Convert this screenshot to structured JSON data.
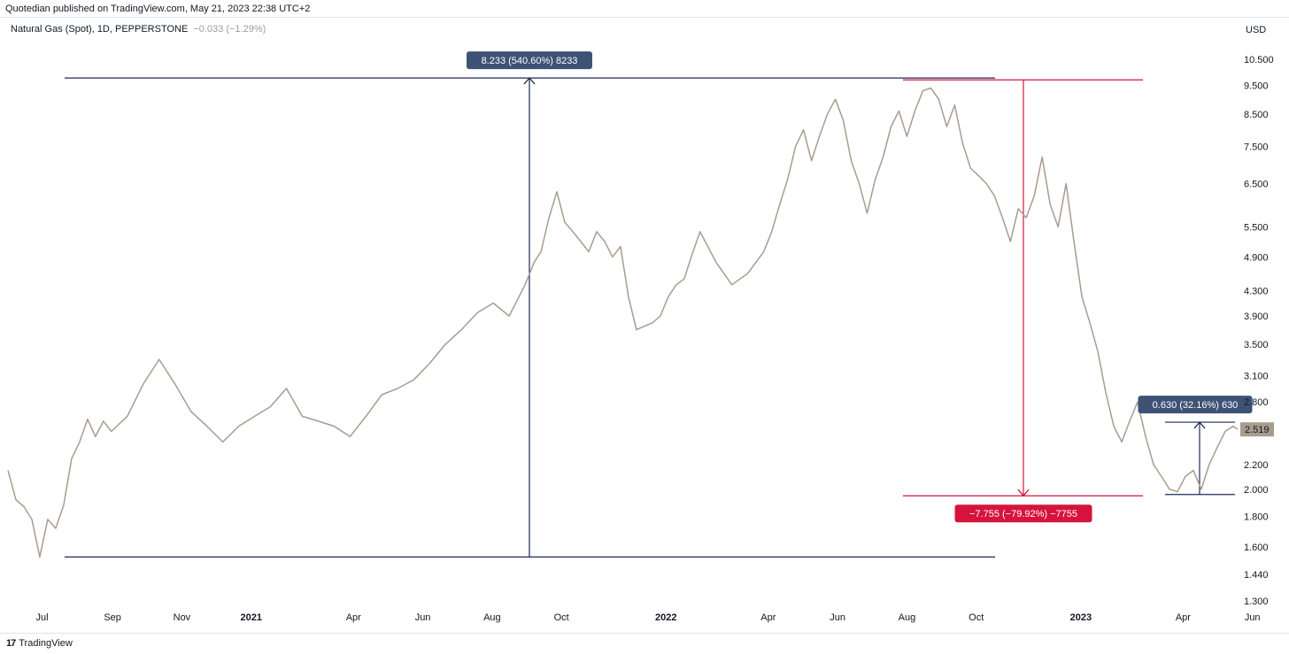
{
  "header": {
    "published": "Quotedian published on TradingView.com, May 21, 2023 22:38 UTC+2"
  },
  "legend": {
    "symbol": "Natural Gas (Spot), 1D, PEPPERSTONE",
    "change": "−0.033 (−1.29%)"
  },
  "currency_label": "USD",
  "footer": {
    "logo_glyph": "17",
    "brand": "TradingView"
  },
  "colors": {
    "price_line": "#a89c8e",
    "measure_blue": "#1e2a5a",
    "measure_red": "#d4143c",
    "label_blue_bg": "#3d5275",
    "last_price_bg": "#a89c8e"
  },
  "chart_data": {
    "type": "line",
    "scale": "log",
    "ylim": [
      1.25,
      11.2
    ],
    "y_ticks": [
      "10.500",
      "9.500",
      "8.500",
      "7.500",
      "6.500",
      "5.500",
      "4.900",
      "4.300",
      "3.900",
      "3.500",
      "3.100",
      "2.800",
      "2.519",
      "2.200",
      "2.000",
      "1.800",
      "1.600",
      "1.440",
      "1.300"
    ],
    "x_ticks": [
      "Jul",
      "Sep",
      "Nov",
      "2021",
      "Apr",
      "Jun",
      "Aug",
      "Oct",
      "2022",
      "Apr",
      "Jun",
      "Aug",
      "Oct",
      "2023",
      "Apr",
      "Jun"
    ],
    "last_price": "2.519",
    "series": [
      {
        "x": [
          "2020-06-01",
          "2020-06-08",
          "2020-06-15",
          "2020-06-22",
          "2020-06-29",
          "2020-07-06",
          "2020-07-13",
          "2020-07-20",
          "2020-07-27",
          "2020-08-03",
          "2020-08-10",
          "2020-08-17",
          "2020-08-24",
          "2020-08-31",
          "2020-09-14",
          "2020-09-28",
          "2020-10-12",
          "2020-10-26",
          "2020-11-09",
          "2020-11-23",
          "2020-12-07",
          "2020-12-21",
          "2021-01-04",
          "2021-01-18",
          "2021-02-01",
          "2021-02-15",
          "2021-03-01",
          "2021-03-15",
          "2021-03-29",
          "2021-04-12",
          "2021-04-26",
          "2021-05-10",
          "2021-05-24",
          "2021-06-07",
          "2021-06-21",
          "2021-07-05",
          "2021-07-19",
          "2021-08-02",
          "2021-08-16",
          "2021-08-30",
          "2021-09-07",
          "2021-09-13",
          "2021-09-20",
          "2021-09-27",
          "2021-10-04",
          "2021-10-11",
          "2021-10-18",
          "2021-10-25",
          "2021-11-01",
          "2021-11-08",
          "2021-11-15",
          "2021-11-22",
          "2021-11-29",
          "2021-12-06",
          "2021-12-13",
          "2021-12-20",
          "2021-12-27",
          "2022-01-03",
          "2022-01-10",
          "2022-01-17",
          "2022-01-24",
          "2022-01-31",
          "2022-02-14",
          "2022-02-28",
          "2022-03-14",
          "2022-03-28",
          "2022-04-04",
          "2022-04-11",
          "2022-04-18",
          "2022-04-25",
          "2022-05-02",
          "2022-05-09",
          "2022-05-16",
          "2022-05-23",
          "2022-05-30",
          "2022-06-06",
          "2022-06-13",
          "2022-06-20",
          "2022-06-27",
          "2022-07-04",
          "2022-07-11",
          "2022-07-18",
          "2022-07-25",
          "2022-08-01",
          "2022-08-08",
          "2022-08-15",
          "2022-08-22",
          "2022-08-29",
          "2022-09-05",
          "2022-09-12",
          "2022-09-19",
          "2022-09-26",
          "2022-10-03",
          "2022-10-10",
          "2022-10-17",
          "2022-10-24",
          "2022-10-31",
          "2022-11-07",
          "2022-11-14",
          "2022-11-21",
          "2022-11-28",
          "2022-12-05",
          "2022-12-12",
          "2022-12-19",
          "2022-12-26",
          "2023-01-02",
          "2023-01-09",
          "2023-01-16",
          "2023-01-23",
          "2023-01-30",
          "2023-02-06",
          "2023-02-13",
          "2023-02-20",
          "2023-02-27",
          "2023-03-06",
          "2023-03-13",
          "2023-03-20",
          "2023-03-27",
          "2023-04-03",
          "2023-04-10",
          "2023-04-17",
          "2023-04-24",
          "2023-05-01",
          "2023-05-08",
          "2023-05-15",
          "2023-05-19"
        ],
        "values": [
          2.15,
          1.92,
          1.87,
          1.78,
          1.54,
          1.78,
          1.72,
          1.88,
          2.25,
          2.4,
          2.62,
          2.45,
          2.6,
          2.5,
          2.65,
          3.0,
          3.3,
          3.0,
          2.7,
          2.55,
          2.4,
          2.55,
          2.65,
          2.75,
          2.95,
          2.65,
          2.6,
          2.55,
          2.45,
          2.65,
          2.88,
          2.95,
          3.05,
          3.25,
          3.5,
          3.7,
          3.95,
          4.1,
          3.9,
          4.4,
          4.8,
          5.0,
          5.7,
          6.3,
          5.6,
          5.4,
          5.2,
          5.0,
          5.4,
          5.2,
          4.9,
          5.1,
          4.2,
          3.7,
          3.75,
          3.8,
          3.9,
          4.2,
          4.4,
          4.5,
          4.95,
          5.4,
          4.8,
          4.4,
          4.6,
          5.0,
          5.4,
          6.0,
          6.6,
          7.5,
          8.0,
          7.1,
          7.8,
          8.5,
          9.0,
          8.3,
          7.1,
          6.5,
          5.8,
          6.6,
          7.2,
          8.1,
          8.6,
          7.8,
          8.6,
          9.3,
          9.4,
          9.0,
          8.1,
          8.8,
          7.6,
          6.9,
          6.7,
          6.5,
          6.2,
          5.7,
          5.2,
          5.9,
          5.7,
          6.2,
          7.2,
          6.0,
          5.5,
          6.5,
          5.2,
          4.2,
          3.8,
          3.4,
          2.9,
          2.55,
          2.4,
          2.6,
          2.8,
          2.45,
          2.2,
          2.1,
          2.0,
          1.98,
          2.1,
          2.15,
          2.0,
          2.2,
          2.35,
          2.5,
          2.55,
          2.52
        ]
      }
    ],
    "measurements": [
      {
        "label": "8.233 (540.60%) 8233",
        "from": 1.54,
        "to": 9.77,
        "direction": "up",
        "color": "blue"
      },
      {
        "label": "−7.755 (−79.92%) −7755",
        "from": 9.7,
        "to": 1.95,
        "direction": "down",
        "color": "red"
      },
      {
        "label": "0.630 (32.16%) 630",
        "from": 1.96,
        "to": 2.59,
        "direction": "up",
        "color": "blue"
      }
    ]
  }
}
